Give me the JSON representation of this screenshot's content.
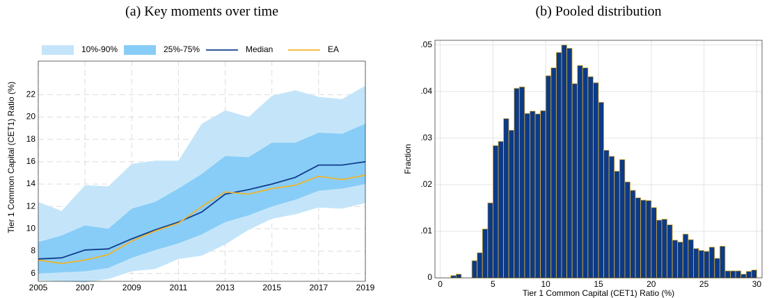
{
  "chart_data": [
    {
      "type": "band-line",
      "title": "(a) Key moments over time",
      "y_label": "Tier 1 Common Capital (CET1) Ratio (%)",
      "x": [
        2005,
        2006,
        2007,
        2008,
        2009,
        2010,
        2011,
        2012,
        2013,
        2014,
        2015,
        2016,
        2017,
        2018,
        2019
      ],
      "series": [
        {
          "name": "10%-90%",
          "color": "#c4e5f9",
          "lower": [
            5.4,
            5.3,
            5.2,
            5.5,
            6.2,
            6.4,
            7.3,
            7.6,
            8.6,
            9.9,
            10.9,
            11.3,
            11.9,
            11.8,
            12.3
          ],
          "upper": [
            12.4,
            11.6,
            13.9,
            13.8,
            15.8,
            16.1,
            16.1,
            19.4,
            20.6,
            20.0,
            21.9,
            22.4,
            21.8,
            21.6,
            22.8
          ]
        },
        {
          "name": "25%-75%",
          "color": "#88cdf7",
          "lower": [
            6.0,
            6.1,
            6.2,
            6.5,
            7.4,
            8.1,
            8.7,
            9.5,
            10.6,
            11.2,
            12.0,
            12.6,
            13.4,
            13.6,
            14.0
          ],
          "upper": [
            8.8,
            9.4,
            10.3,
            10.0,
            11.8,
            12.4,
            13.6,
            14.9,
            16.5,
            16.4,
            17.7,
            17.7,
            18.6,
            18.5,
            19.4
          ]
        },
        {
          "name": "Median",
          "color": "#123e8c",
          "values": [
            7.3,
            7.4,
            8.1,
            8.2,
            9.1,
            9.9,
            10.6,
            11.5,
            13.1,
            13.5,
            14.0,
            14.6,
            15.7,
            15.7,
            16.0
          ]
        },
        {
          "name": "EA",
          "color": "#efb42b",
          "values": [
            7.2,
            6.9,
            7.2,
            7.7,
            8.9,
            9.8,
            10.5,
            12.0,
            13.3,
            13.1,
            13.6,
            13.9,
            14.7,
            14.4,
            14.8
          ]
        }
      ],
      "xlim": [
        2005,
        2019
      ],
      "xticks": [
        2005,
        2007,
        2009,
        2011,
        2013,
        2015,
        2017,
        2019
      ],
      "ylim": [
        5.3,
        25
      ],
      "yticks": [
        6,
        8,
        10,
        12,
        14,
        16,
        18,
        20,
        22
      ],
      "grid": "dashed"
    },
    {
      "type": "histogram",
      "title": "(b) Pooled distribution",
      "x_label": "Tier 1 Common Capital (CET1) Ratio (%)",
      "y_label": "Fraction",
      "color": "#0c3a87",
      "edge_color": "#e8b32a",
      "bins": [
        1.0,
        1.5,
        2.0,
        2.5,
        3.0,
        3.5,
        4.0,
        4.5,
        5.0,
        5.5,
        6.0,
        6.5,
        7.0,
        7.5,
        8.0,
        8.5,
        9.0,
        9.5,
        10.0,
        10.5,
        11.0,
        11.5,
        12.0,
        12.5,
        13.0,
        13.5,
        14.0,
        14.5,
        15.0,
        15.5,
        16.0,
        16.5,
        17.0,
        17.5,
        18.0,
        18.5,
        19.0,
        19.5,
        20.0,
        20.5,
        21.0,
        21.5,
        22.0,
        22.5,
        23.0,
        23.5,
        24.0,
        24.5,
        25.0,
        25.5,
        26.0,
        26.5,
        27.0,
        27.5,
        28.0,
        28.5,
        29.0,
        29.5,
        30.0
      ],
      "values": [
        0.0005,
        0.0008,
        0,
        0,
        0.0037,
        0.0054,
        0.0105,
        0.0161,
        0.0284,
        0.0293,
        0.0342,
        0.0317,
        0.0407,
        0.041,
        0.0353,
        0.0358,
        0.0352,
        0.0359,
        0.0434,
        0.0451,
        0.0484,
        0.05,
        0.0493,
        0.0417,
        0.0456,
        0.0451,
        0.0432,
        0.0419,
        0.0377,
        0.0274,
        0.0261,
        0.0229,
        0.0254,
        0.0206,
        0.0188,
        0.0172,
        0.0167,
        0.0166,
        0.0151,
        0.0124,
        0.0126,
        0.0114,
        0.0081,
        0.0077,
        0.0094,
        0.0082,
        0.0063,
        0.0059,
        0.0057,
        0.0066,
        0.0042,
        0.0068,
        0.0015,
        0.0015,
        0.0015,
        0.0008,
        0.0014,
        0.0017
      ],
      "xlim": [
        -0.5,
        30.5
      ],
      "xticks": [
        0,
        5,
        10,
        15,
        20,
        25,
        30
      ],
      "ylim": [
        0,
        0.051
      ],
      "yticks": [
        0,
        {
          "value": 0.01,
          "label": ".01"
        },
        {
          "value": 0.02,
          "label": ".02"
        },
        {
          "value": 0.03,
          "label": ".03"
        },
        {
          "value": 0.04,
          "label": ".04"
        },
        {
          "value": 0.05,
          "label": ".05"
        }
      ],
      "grid": "solid"
    }
  ]
}
